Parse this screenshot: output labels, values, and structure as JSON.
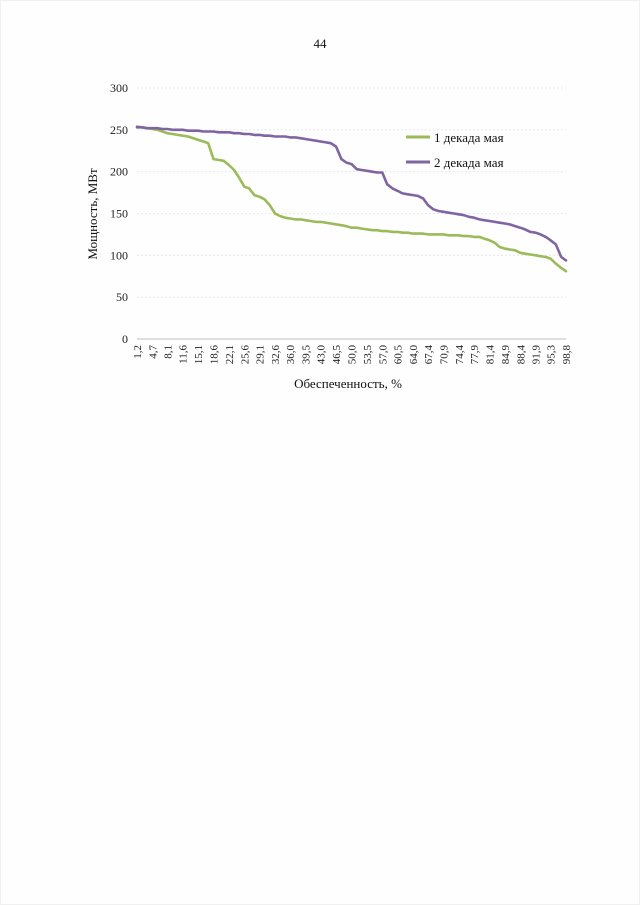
{
  "page": {
    "number": "44"
  },
  "chart_data": {
    "type": "line",
    "title": "",
    "xlabel": "Обеспеченность, %",
    "ylabel": "Мощность, МВт",
    "ylim": [
      0,
      300
    ],
    "yticks": [
      0,
      50,
      100,
      150,
      200,
      250,
      300
    ],
    "grid": true,
    "legend_position": "right",
    "categories": [
      "1,2",
      "4,7",
      "8,1",
      "11,6",
      "15,1",
      "18,6",
      "22,1",
      "25,6",
      "29,1",
      "32,6",
      "36,0",
      "39,5",
      "43,0",
      "46,5",
      "50,0",
      "53,5",
      "57,0",
      "60,5",
      "64,0",
      "67,4",
      "70,9",
      "74,4",
      "77,9",
      "81,4",
      "84,9",
      "88,4",
      "91,9",
      "95,3",
      "98,8"
    ],
    "x": [
      1.2,
      2.3,
      3.5,
      4.7,
      5.8,
      7.0,
      8.1,
      9.3,
      10.5,
      11.6,
      12.8,
      14.0,
      15.1,
      16.3,
      17.4,
      18.6,
      19.8,
      20.9,
      22.1,
      23.3,
      24.4,
      25.6,
      26.7,
      27.9,
      29.1,
      30.2,
      31.4,
      32.6,
      33.7,
      34.9,
      36.0,
      37.2,
      38.4,
      39.5,
      40.7,
      41.9,
      43.0,
      44.2,
      45.3,
      46.5,
      47.7,
      48.8,
      50.0,
      51.2,
      52.3,
      53.5,
      54.7,
      55.8,
      57.0,
      58.1,
      59.3,
      60.5,
      61.6,
      62.8,
      64.0,
      65.1,
      66.3,
      67.4,
      68.6,
      69.8,
      70.9,
      72.1,
      73.3,
      74.4,
      75.6,
      76.7,
      77.9,
      79.1,
      80.2,
      81.4,
      82.6,
      83.7,
      84.9,
      86.0,
      87.2,
      88.4,
      89.5,
      90.7,
      91.9,
      93.0,
      94.2,
      95.3,
      96.5,
      97.7,
      98.8
    ],
    "series": [
      {
        "name": "1 декада мая",
        "color": "#9bbb59",
        "values": [
          254,
          253,
          252,
          251,
          250,
          248,
          246,
          245,
          244,
          243,
          242,
          240,
          238,
          236,
          234,
          215,
          214,
          213,
          208,
          202,
          193,
          182,
          180,
          172,
          170,
          167,
          160,
          150,
          147,
          145,
          144,
          143,
          143,
          142,
          141,
          140,
          140,
          139,
          138,
          137,
          136,
          135,
          133,
          133,
          132,
          131,
          130,
          130,
          129,
          129,
          128,
          128,
          127,
          127,
          126,
          126,
          126,
          125,
          125,
          125,
          125,
          124,
          124,
          124,
          123,
          123,
          122,
          122,
          120,
          118,
          115,
          110,
          108,
          107,
          106,
          103,
          102,
          101,
          100,
          99,
          98,
          96,
          90,
          85,
          81
        ]
      },
      {
        "name": "2 декада мая",
        "color": "#8064a2",
        "values": [
          253,
          253,
          252,
          252,
          252,
          251,
          251,
          250,
          250,
          250,
          249,
          249,
          249,
          248,
          248,
          248,
          247,
          247,
          247,
          246,
          246,
          245,
          245,
          244,
          244,
          243,
          243,
          242,
          242,
          242,
          241,
          241,
          240,
          239,
          238,
          237,
          236,
          235,
          234,
          230,
          215,
          211,
          209,
          203,
          202,
          201,
          200,
          199,
          199,
          185,
          180,
          177,
          174,
          173,
          172,
          171,
          168,
          160,
          155,
          153,
          152,
          151,
          150,
          149,
          148,
          146,
          145,
          143,
          142,
          141,
          140,
          139,
          138,
          137,
          135,
          133,
          131,
          128,
          127,
          125,
          122,
          118,
          113,
          98,
          94
        ]
      }
    ]
  }
}
